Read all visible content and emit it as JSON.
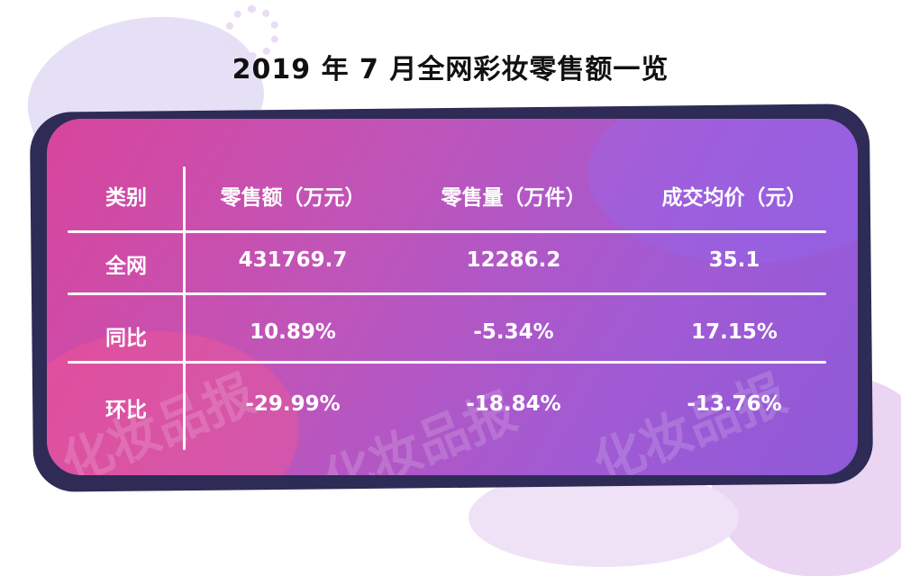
{
  "title": "2019 年 7 月全网彩妆零售额一览",
  "watermark": "化妆品报",
  "table": {
    "headers": [
      "类别",
      "零售额（万元）",
      "零售量（万件）",
      "成交均价（元）"
    ],
    "rows": [
      {
        "label": "全网",
        "values": [
          "431769.7",
          "12286.2",
          "35.1"
        ]
      },
      {
        "label": "同比",
        "values": [
          "10.89%",
          "-5.34%",
          "17.15%"
        ]
      },
      {
        "label": "环比",
        "values": [
          "-29.99%",
          "-18.84%",
          "-13.76%"
        ]
      }
    ]
  },
  "colors": {
    "frame": "#2e2b56",
    "gradient_start": "#d8459c",
    "gradient_end": "#8e5ad8",
    "text": "#ffffff"
  }
}
